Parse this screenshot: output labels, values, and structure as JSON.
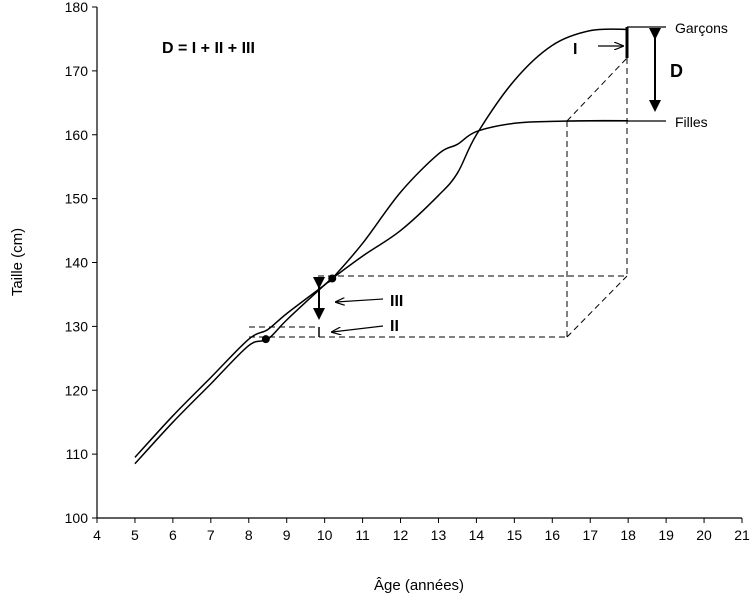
{
  "chart_data": {
    "type": "line",
    "title": "",
    "xlabel": "Âge (années)",
    "ylabel": "Taille (cm)",
    "xlim": [
      4,
      21
    ],
    "ylim": [
      100,
      180
    ],
    "xticks": [
      4,
      5,
      6,
      7,
      8,
      9,
      10,
      11,
      12,
      13,
      14,
      15,
      16,
      17,
      18,
      19,
      20,
      21
    ],
    "yticks": [
      100,
      110,
      120,
      130,
      140,
      150,
      160,
      170,
      180
    ],
    "grid": false,
    "series": [
      {
        "name": "Garçons",
        "x": [
          5,
          6,
          7,
          8,
          8.5,
          9,
          10,
          10.2,
          11,
          12,
          13,
          13.5,
          14,
          15,
          16,
          17,
          18,
          19
        ],
        "y": [
          108.5,
          115,
          121,
          127,
          128,
          131,
          136.5,
          137.5,
          141,
          145,
          150.5,
          154,
          160,
          168.5,
          174,
          176.3,
          176.5,
          176.5
        ]
      },
      {
        "name": "Filles",
        "x": [
          5,
          6,
          7,
          8,
          8.5,
          9,
          10,
          10.2,
          11,
          12,
          13,
          13.5,
          14,
          15,
          16,
          17,
          18,
          19
        ],
        "y": [
          109.5,
          116,
          122,
          128,
          129.5,
          132,
          136.5,
          137.5,
          143,
          151,
          157,
          158.5,
          160.5,
          161.8,
          162.1,
          162.2,
          162.2,
          162.2
        ]
      }
    ],
    "points": [
      {
        "x": 10.2,
        "y": 137.5
      },
      {
        "x": 8.45,
        "y": 128
      }
    ],
    "annotations": {
      "formula": "D = I + II + III",
      "label_I": "I",
      "label_II": "II",
      "label_III": "III",
      "label_D": "D"
    }
  }
}
